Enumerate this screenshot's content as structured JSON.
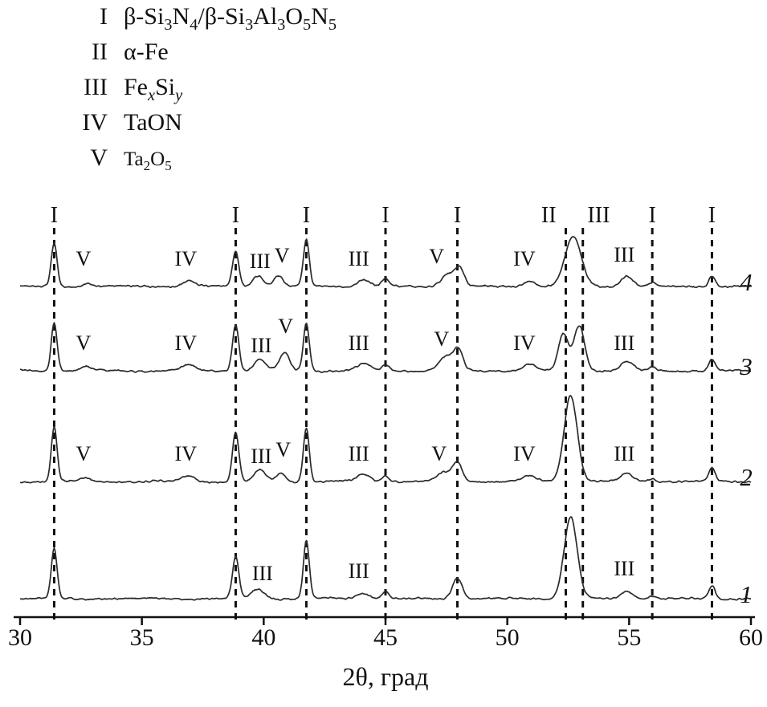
{
  "figure": {
    "legend": {
      "items": [
        {
          "numeral": "I",
          "formula": "β-Si_3_N_4_/β-Si_3_Al_3_O_5_N_5_"
        },
        {
          "numeral": "II",
          "formula": "α-Fe"
        },
        {
          "numeral": "III",
          "formula": "Fe_x_Si_y_"
        },
        {
          "numeral": "IV",
          "formula": "TaON"
        },
        {
          "numeral": "V",
          "formula": "Ta_2_O_5_",
          "small": true
        }
      ]
    }
  },
  "chart_data": {
    "type": "line",
    "title": "",
    "xlabel": "2θ, град",
    "ylabel": "",
    "x_range": [
      30,
      60
    ],
    "x_ticks": [
      "30",
      "35",
      "40",
      "45",
      "50",
      "55",
      "60"
    ],
    "grid": false,
    "legend_position": "top-left",
    "reference_lines": [
      {
        "x": 31.4,
        "label": "I"
      },
      {
        "x": 38.85,
        "label": "I"
      },
      {
        "x": 41.75,
        "label": "I"
      },
      {
        "x": 45.0,
        "label": "I"
      },
      {
        "x": 47.95,
        "label": "I"
      },
      {
        "x": 52.4,
        "label": "II",
        "label_x": 51.7
      },
      {
        "x": 53.1,
        "label": "III",
        "label_x": 53.75
      },
      {
        "x": 55.95,
        "label": "I"
      },
      {
        "x": 58.4,
        "label": "I"
      }
    ],
    "series": [
      {
        "name": "4",
        "seed": 44,
        "peaks": [
          [
            31.4,
            54,
            0.12
          ],
          [
            32.8,
            4,
            0.2
          ],
          [
            36.9,
            7,
            0.25
          ],
          [
            38.85,
            44,
            0.13
          ],
          [
            39.75,
            14,
            0.22
          ],
          [
            40.6,
            13,
            0.2
          ],
          [
            41.75,
            58,
            0.12
          ],
          [
            44.1,
            9,
            0.25
          ],
          [
            45.0,
            10,
            0.15
          ],
          [
            47.6,
            16,
            0.3
          ],
          [
            48.05,
            20,
            0.18
          ],
          [
            50.9,
            7,
            0.25
          ],
          [
            52.7,
            62,
            0.33
          ],
          [
            54.9,
            13,
            0.25
          ],
          [
            55.95,
            4,
            0.15
          ],
          [
            58.4,
            14,
            0.13
          ]
        ],
        "annotations": [
          {
            "x": 32.6,
            "label": "V"
          },
          {
            "x": 36.8,
            "label": "IV"
          },
          {
            "x": 39.85,
            "label": "III",
            "dy": -24
          },
          {
            "x": 40.75,
            "label": "V",
            "dy": -31
          },
          {
            "x": 43.9,
            "label": "III"
          },
          {
            "x": 47.1,
            "label": "V",
            "dy": -30
          },
          {
            "x": 50.7,
            "label": "IV"
          },
          {
            "x": 54.8,
            "label": "III",
            "dy": -32
          }
        ]
      },
      {
        "name": "3",
        "seed": 33,
        "peaks": [
          [
            31.4,
            60,
            0.12
          ],
          [
            32.7,
            5,
            0.2
          ],
          [
            36.9,
            7,
            0.25
          ],
          [
            38.85,
            58,
            0.13
          ],
          [
            39.85,
            15,
            0.22
          ],
          [
            40.85,
            22,
            0.2
          ],
          [
            41.75,
            60,
            0.12
          ],
          [
            44.1,
            9,
            0.25
          ],
          [
            45.0,
            7,
            0.15
          ],
          [
            47.5,
            18,
            0.3
          ],
          [
            48.0,
            24,
            0.18
          ],
          [
            50.9,
            9,
            0.25
          ],
          [
            52.3,
            46,
            0.2
          ],
          [
            52.95,
            56,
            0.22
          ],
          [
            54.9,
            11,
            0.25
          ],
          [
            55.95,
            4,
            0.15
          ],
          [
            58.4,
            14,
            0.13
          ]
        ],
        "annotations": [
          {
            "x": 32.6,
            "label": "V"
          },
          {
            "x": 36.8,
            "label": "IV"
          },
          {
            "x": 39.9,
            "label": "III",
            "dy": -24
          },
          {
            "x": 40.9,
            "label": "V",
            "dy": -48
          },
          {
            "x": 43.9,
            "label": "III"
          },
          {
            "x": 47.3,
            "label": "V",
            "dy": -32
          },
          {
            "x": 50.7,
            "label": "IV"
          },
          {
            "x": 54.8,
            "label": "III"
          }
        ]
      },
      {
        "name": "2",
        "seed": 22,
        "peaks": [
          [
            31.4,
            68,
            0.12
          ],
          [
            32.7,
            4,
            0.2
          ],
          [
            36.9,
            7,
            0.25
          ],
          [
            38.85,
            62,
            0.13
          ],
          [
            39.85,
            14,
            0.22
          ],
          [
            40.7,
            11,
            0.18
          ],
          [
            41.75,
            68,
            0.12
          ],
          [
            44.1,
            9,
            0.25
          ],
          [
            45.0,
            8,
            0.15
          ],
          [
            47.4,
            11,
            0.25
          ],
          [
            47.95,
            24,
            0.2
          ],
          [
            50.9,
            7,
            0.25
          ],
          [
            52.6,
            108,
            0.27
          ],
          [
            54.9,
            10,
            0.25
          ],
          [
            55.95,
            4,
            0.15
          ],
          [
            58.4,
            16,
            0.13
          ]
        ],
        "annotations": [
          {
            "x": 32.6,
            "label": "V"
          },
          {
            "x": 36.8,
            "label": "IV"
          },
          {
            "x": 39.9,
            "label": "III",
            "dy": -24
          },
          {
            "x": 40.8,
            "label": "V",
            "dy": -32
          },
          {
            "x": 43.9,
            "label": "III"
          },
          {
            "x": 47.2,
            "label": "V"
          },
          {
            "x": 50.7,
            "label": "IV"
          },
          {
            "x": 54.8,
            "label": "III"
          }
        ]
      },
      {
        "name": "1",
        "seed": 11,
        "peaks": [
          [
            31.4,
            62,
            0.12
          ],
          [
            38.85,
            52,
            0.13
          ],
          [
            39.75,
            12,
            0.25
          ],
          [
            41.75,
            72,
            0.12
          ],
          [
            44.1,
            7,
            0.25
          ],
          [
            45.0,
            9,
            0.15
          ],
          [
            47.95,
            26,
            0.2
          ],
          [
            52.6,
            102,
            0.27
          ],
          [
            54.9,
            9,
            0.25
          ],
          [
            55.95,
            4,
            0.15
          ],
          [
            58.4,
            17,
            0.13
          ]
        ],
        "annotations": [
          {
            "x": 39.95,
            "label": "III",
            "dy": -24
          },
          {
            "x": 43.9,
            "label": "III"
          },
          {
            "x": 54.8,
            "label": "III",
            "dy": -30
          }
        ]
      }
    ]
  }
}
